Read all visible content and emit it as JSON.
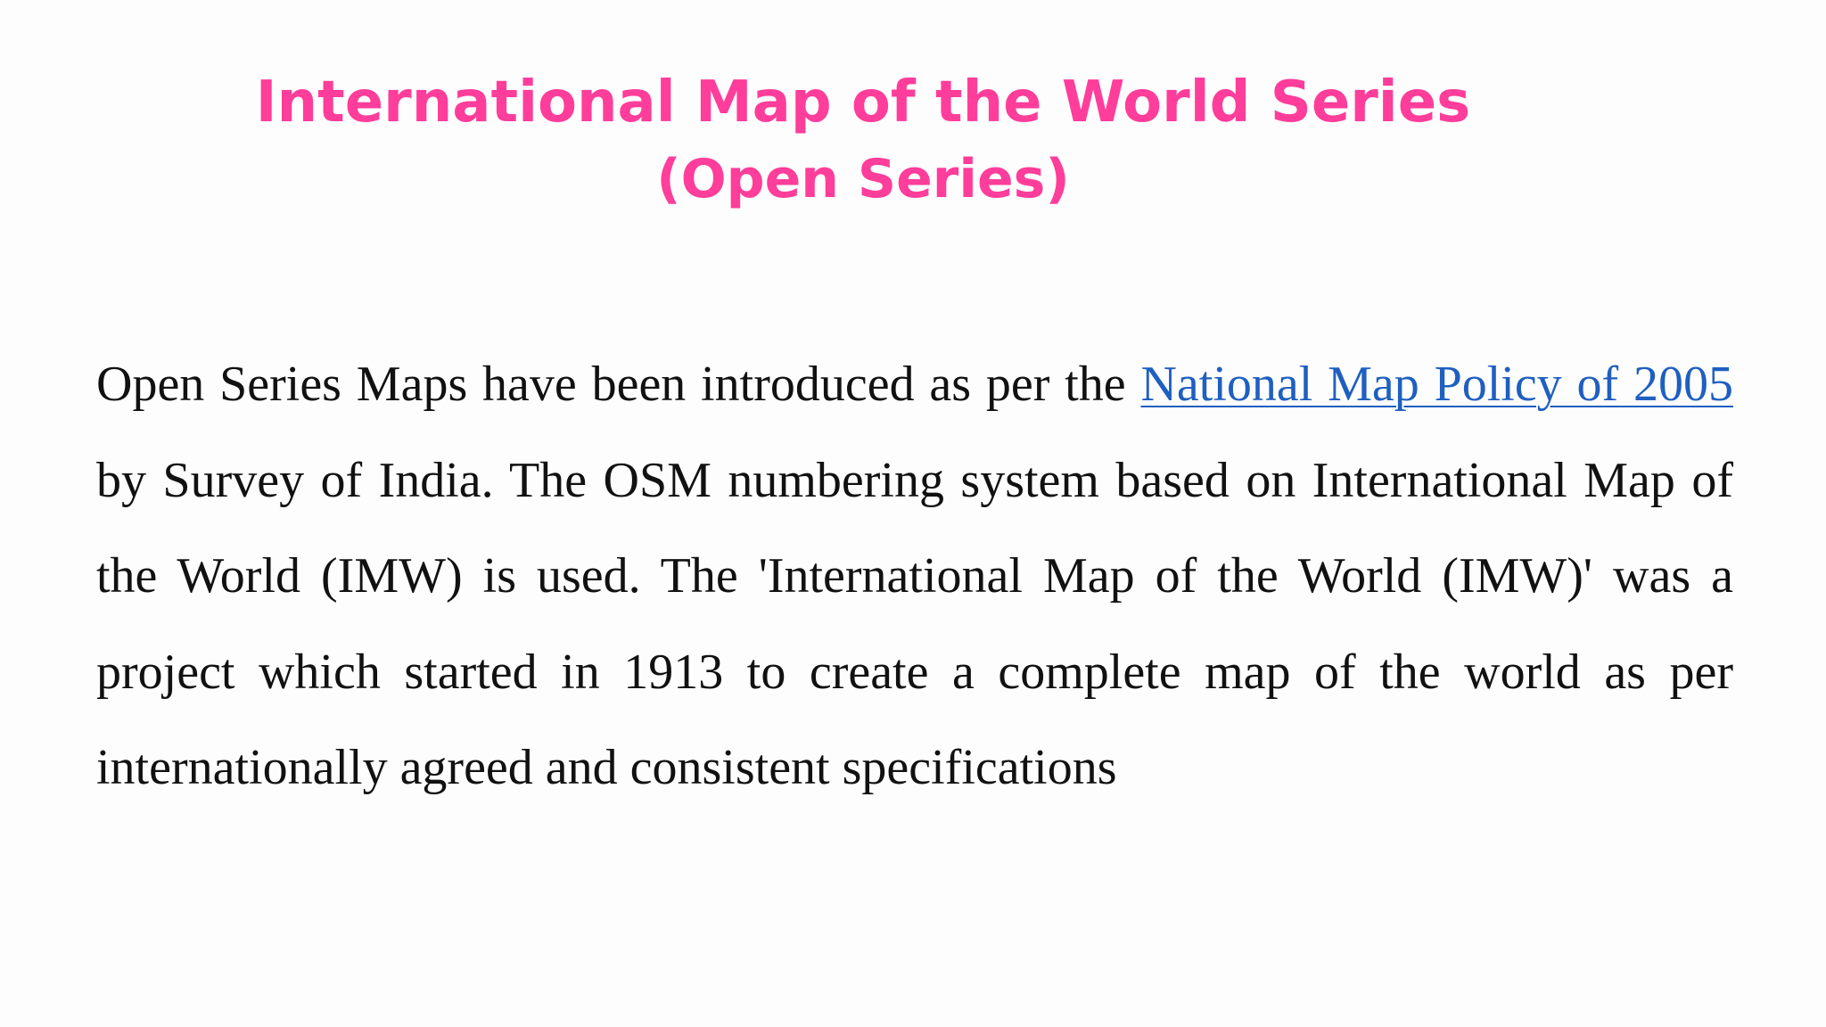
{
  "slide": {
    "title_line_1": "International Map of the World Series",
    "title_line_2": "(Open Series)",
    "paragraph": {
      "text_before_link": "Open Series Maps have been introduced as per the ",
      "link_text": "National Map Policy of 2005 ",
      "text_after_link": "by Survey of India. The OSM numbering system based on International Map of the World (IMW) is used. The 'International Map of the World (IMW)' was a project which started in 1913 to create a complete map of the world as per internationally agreed and consistent specifications"
    }
  },
  "colors": {
    "title": "#ff3d9a",
    "link": "#1f5fc0",
    "body_text": "#111111"
  }
}
